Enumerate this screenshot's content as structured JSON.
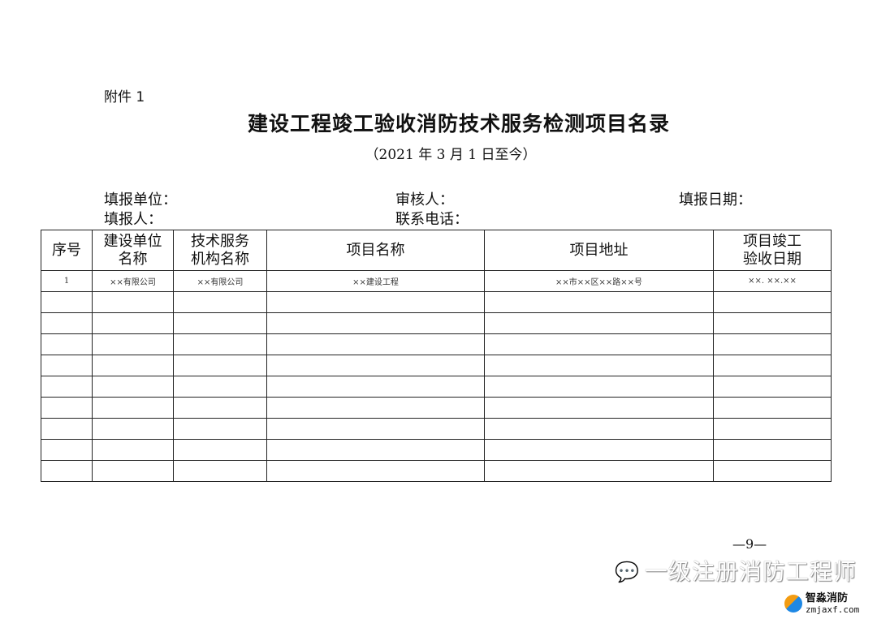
{
  "attachment": "附件 1",
  "title": "建设工程竣工验收消防技术服务检测项目名录",
  "subtitle": "（2021 年 3 月 1 日至今）",
  "meta": {
    "fill_unit": "填报单位：",
    "reviewer": "审核人：",
    "fill_date": "填报日期：",
    "filler": "填报人：",
    "phone": "联系电话："
  },
  "table": {
    "headers": [
      [
        "序号"
      ],
      [
        "建设单位",
        "名称"
      ],
      [
        "技术服务",
        "机构名称"
      ],
      [
        "项目名称"
      ],
      [
        "项目地址"
      ],
      [
        "项目竣工",
        "验收日期"
      ]
    ],
    "rows": [
      [
        "1",
        "××有限公司",
        "××有限公司",
        "××建设工程",
        "××市××区××路××号",
        "××. ××.××"
      ],
      [
        "",
        "",
        "",
        "",
        "",
        ""
      ],
      [
        "",
        "",
        "",
        "",
        "",
        ""
      ],
      [
        "",
        "",
        "",
        "",
        "",
        ""
      ],
      [
        "",
        "",
        "",
        "",
        "",
        ""
      ],
      [
        "",
        "",
        "",
        "",
        "",
        ""
      ],
      [
        "",
        "",
        "",
        "",
        "",
        ""
      ],
      [
        "",
        "",
        "",
        "",
        "",
        ""
      ],
      [
        "",
        "",
        "",
        "",
        "",
        ""
      ],
      [
        "",
        "",
        "",
        "",
        "",
        ""
      ]
    ]
  },
  "page_number": "—9—",
  "watermark": {
    "text": "一级注册消防工程师",
    "icon": "wechat-icon"
  },
  "brand": {
    "name": "智淼消防",
    "url": "zmjaxf.com"
  }
}
